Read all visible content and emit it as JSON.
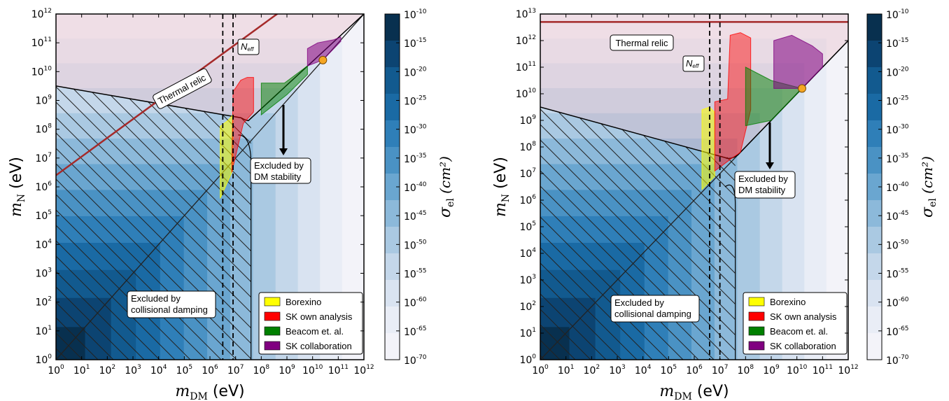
{
  "figure": {
    "panels": [
      {
        "x_label_main": "m",
        "x_label_sub": "DM",
        "x_label_unit": "(eV)",
        "y_label_main": "m",
        "y_label_sub": "N",
        "y_label_unit": "(eV)",
        "colorbar_label_main": "σ",
        "colorbar_label_sub": "el",
        "colorbar_label_unit": "(cm²)",
        "annotations": {
          "thermal_relic": "Thermal relic",
          "neff": "Neff",
          "dm_stability_1": "Excluded by",
          "dm_stability_2": "DM stability",
          "coll_damping_1": "Excluded by",
          "coll_damping_2": "collisional damping"
        },
        "legend": [
          "Borexino",
          "SK own analysis",
          "Beacom et. al.",
          "SK collaboration"
        ]
      },
      {
        "x_label_main": "m",
        "x_label_sub": "DM",
        "x_label_unit": "(eV)",
        "y_label_main": "m",
        "y_label_sub": "N",
        "y_label_unit": "(eV)",
        "colorbar_label_main": "σ",
        "colorbar_label_sub": "el",
        "colorbar_label_unit": "(cm²)",
        "annotations": {
          "thermal_relic": "Thermal relic",
          "neff": "Neff",
          "dm_stability_1": "Excluded by",
          "dm_stability_2": "DM stability",
          "coll_damping_1": "Excluded by",
          "coll_damping_2": "collisional damping"
        },
        "legend": [
          "Borexino",
          "SK own analysis",
          "Beacom et. al.",
          "SK collaboration"
        ]
      }
    ]
  },
  "chart_data": [
    {
      "type": "heatmap",
      "x_scale": "log",
      "y_scale": "log",
      "xlim_exp": [
        0,
        12
      ],
      "ylim_exp": [
        0,
        12
      ],
      "x_tick_exponents": [
        0,
        1,
        2,
        3,
        4,
        5,
        6,
        7,
        8,
        9,
        10,
        11,
        12
      ],
      "y_tick_exponents": [
        0,
        1,
        2,
        3,
        4,
        5,
        6,
        7,
        8,
        9,
        10,
        11,
        12
      ],
      "colorbar": {
        "scale": "log",
        "tick_exponents": [
          -10,
          -15,
          -20,
          -25,
          -30,
          -35,
          -40,
          -45,
          -50,
          -55,
          -60,
          -65,
          -70
        ],
        "colors": [
          "#08304f",
          "#0c4472",
          "#125a8f",
          "#1a6aa4",
          "#2f7fb8",
          "#4a92c4",
          "#6aa6d0",
          "#8cb9da",
          "#aac9e2",
          "#c4d7ea",
          "#d9e3f1",
          "#e9edf6",
          "#f3f3f9"
        ]
      },
      "thermal_relic_line": {
        "x": [
          0,
          12
        ],
        "y": [
          6.4,
          14.2
        ],
        "color": "#a52a2a"
      },
      "neff_lines_x": [
        6.5,
        6.9
      ],
      "dm_stability_boundary_log": [
        [
          0,
          9.5
        ],
        [
          7.2,
          8.4
        ],
        [
          7.5,
          8.3
        ],
        [
          12,
          12
        ]
      ],
      "collisional_damping_boundary_log": [
        [
          0,
          0
        ],
        [
          7.1,
          7.8
        ],
        [
          7.6,
          8.3
        ],
        [
          7.6,
          0
        ]
      ],
      "marker": {
        "x_exp": 10.4,
        "y_exp": 10.4,
        "color": "#f5a623"
      },
      "series": [
        {
          "name": "Borexino",
          "color": "#ffff00"
        },
        {
          "name": "SK own analysis",
          "color": "#ff0000"
        },
        {
          "name": "Beacom et. al.",
          "color": "#008000"
        },
        {
          "name": "SK collaboration",
          "color": "#800080"
        }
      ]
    },
    {
      "type": "heatmap",
      "x_scale": "log",
      "y_scale": "log",
      "xlim_exp": [
        0,
        12
      ],
      "ylim_exp": [
        0,
        13
      ],
      "x_tick_exponents": [
        0,
        1,
        2,
        3,
        4,
        5,
        6,
        7,
        8,
        9,
        10,
        11,
        12
      ],
      "y_tick_exponents": [
        0,
        1,
        2,
        3,
        4,
        5,
        6,
        7,
        8,
        9,
        10,
        11,
        12,
        13
      ],
      "colorbar": {
        "scale": "log",
        "tick_exponents": [
          -10,
          -15,
          -20,
          -25,
          -30,
          -35,
          -40,
          -45,
          -50,
          -55,
          -60,
          -65,
          -70
        ],
        "colors": [
          "#08304f",
          "#0c4472",
          "#125a8f",
          "#1a6aa4",
          "#2f7fb8",
          "#4a92c4",
          "#6aa6d0",
          "#8cb9da",
          "#aac9e2",
          "#c4d7ea",
          "#d9e3f1",
          "#e9edf6",
          "#f3f3f9"
        ]
      },
      "thermal_relic_line": {
        "x": [
          0,
          12
        ],
        "y": [
          12.7,
          12.7
        ],
        "color": "#a52a2a"
      },
      "neff_lines_x": [
        6.6,
        7.0
      ],
      "dm_stability_boundary_log": [
        [
          0,
          9.5
        ],
        [
          7.2,
          7.6
        ],
        [
          7.7,
          7.7
        ],
        [
          12,
          12
        ]
      ],
      "collisional_damping_boundary_log": [
        [
          0,
          0
        ],
        [
          7.2,
          6.5
        ],
        [
          7.6,
          7.3
        ],
        [
          7.6,
          0
        ]
      ],
      "marker": {
        "x_exp": 10.2,
        "y_exp": 10.2,
        "color": "#f5a623"
      },
      "series": [
        {
          "name": "Borexino",
          "color": "#ffff00"
        },
        {
          "name": "SK own analysis",
          "color": "#ff0000"
        },
        {
          "name": "Beacom et. al.",
          "color": "#008000"
        },
        {
          "name": "SK collaboration",
          "color": "#800080"
        }
      ]
    }
  ]
}
